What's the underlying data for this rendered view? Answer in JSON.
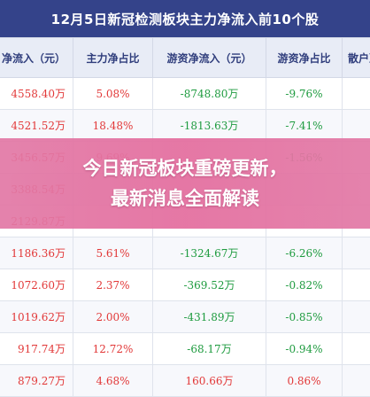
{
  "title": "12月5日新冠检测板块主力净流入前10个股",
  "columns": [
    "净流入（元）",
    "主力净占比",
    "游资净流入（元）",
    "游资净占比",
    "散户净"
  ],
  "rows": [
    {
      "net_inflow": "4558.40万",
      "main_ratio": "5.08%",
      "hot_inflow": "-8748.80万",
      "hot_ratio": "-9.76%",
      "main_sign": "pos",
      "hot_sign": "neg",
      "hr_sign": "neg"
    },
    {
      "net_inflow": "4521.52万",
      "main_ratio": "18.48%",
      "hot_inflow": "-1813.63万",
      "hot_ratio": "-7.41%",
      "main_sign": "pos",
      "hot_sign": "neg",
      "hr_sign": "neg"
    },
    {
      "net_inflow": "3456.57万",
      "main_ratio": "9.69%",
      "hot_inflow": "-",
      "hot_ratio": "-1.56%",
      "main_sign": "pos",
      "hot_sign": "neg",
      "hr_sign": "neg"
    },
    {
      "net_inflow": "3388.54万",
      "main_ratio": "",
      "hot_inflow": "",
      "hot_ratio": "",
      "main_sign": "pos",
      "hot_sign": "neg",
      "hr_sign": "neg"
    },
    {
      "net_inflow": "2129.87万",
      "main_ratio": "",
      "hot_inflow": "",
      "hot_ratio": "",
      "main_sign": "pos",
      "hot_sign": "neg",
      "hr_sign": "neg"
    },
    {
      "net_inflow": "1186.36万",
      "main_ratio": "5.61%",
      "hot_inflow": "-1324.67万",
      "hot_ratio": "-6.26%",
      "main_sign": "pos",
      "hot_sign": "neg",
      "hr_sign": "neg"
    },
    {
      "net_inflow": "1072.60万",
      "main_ratio": "2.37%",
      "hot_inflow": "-369.52万",
      "hot_ratio": "-0.82%",
      "main_sign": "pos",
      "hot_sign": "neg",
      "hr_sign": "neg"
    },
    {
      "net_inflow": "1019.62万",
      "main_ratio": "2.00%",
      "hot_inflow": "-431.89万",
      "hot_ratio": "-0.85%",
      "main_sign": "pos",
      "hot_sign": "neg",
      "hr_sign": "neg"
    },
    {
      "net_inflow": "917.74万",
      "main_ratio": "12.72%",
      "hot_inflow": "-68.17万",
      "hot_ratio": "-0.94%",
      "main_sign": "pos",
      "hot_sign": "neg",
      "hr_sign": "neg"
    },
    {
      "net_inflow": "879.27万",
      "main_ratio": "4.68%",
      "hot_inflow": "160.66万",
      "hot_ratio": "0.86%",
      "main_sign": "pos",
      "hot_sign": "pos",
      "hr_sign": "pos"
    }
  ],
  "banner": {
    "line1": "今日新冠板块重磅更新，",
    "line2": "最新消息全面解读"
  },
  "colors": {
    "header_bg": "#34438a",
    "positive": "#e23838",
    "negative": "#1e9b3f",
    "banner": "#e478a0"
  }
}
